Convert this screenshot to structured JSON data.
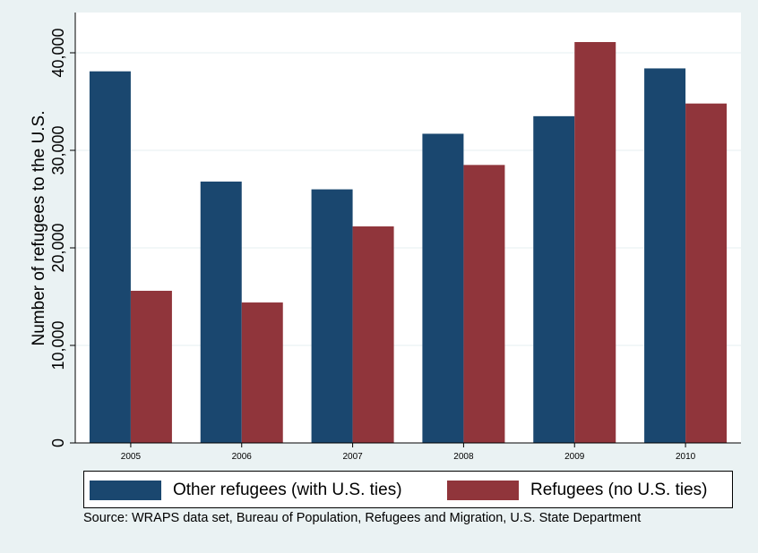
{
  "chart_data": {
    "type": "bar",
    "title": "",
    "xlabel": "",
    "ylabel": "Number of refugees to the U.S.",
    "ylim": [
      0,
      44000
    ],
    "yticks": [
      0,
      10000,
      20000,
      30000,
      40000
    ],
    "ytick_labels": [
      "0",
      "10,000",
      "20,000",
      "30,000",
      "40,000"
    ],
    "grid": true,
    "categories": [
      "2005",
      "2006",
      "2007",
      "2008",
      "2009",
      "2010"
    ],
    "series": [
      {
        "name": "Other refugees (with U.S. ties)",
        "color": "#1a476f",
        "values": [
          38100,
          26800,
          26000,
          31700,
          33500,
          38400
        ]
      },
      {
        "name": "Refugees (no U.S. ties)",
        "color": "#90353b",
        "values": [
          15600,
          14400,
          22200,
          28500,
          41100,
          34800
        ]
      }
    ],
    "legend_position": "bottom",
    "note": "Source: WRAPS data set, Bureau of Population, Refugees and Migration, U.S. State Department"
  }
}
